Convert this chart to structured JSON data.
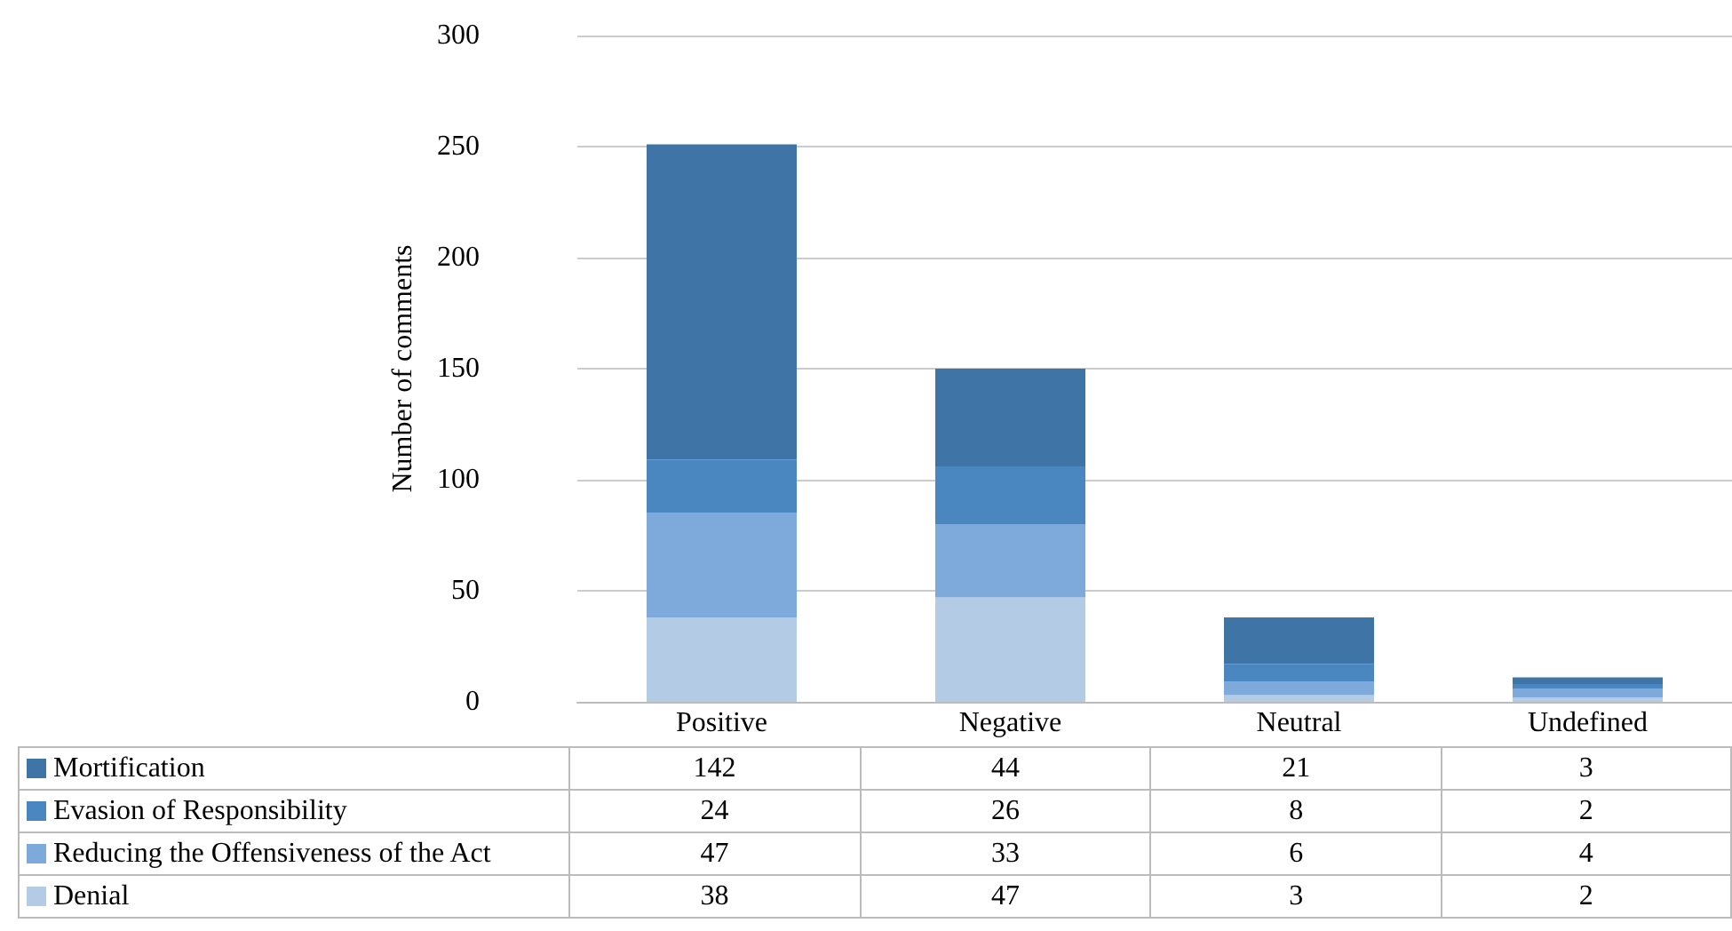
{
  "chart_data": {
    "type": "bar",
    "ylabel": "Number of comments",
    "categories": [
      "Positive",
      "Negative",
      "Neutral",
      "Undefined"
    ],
    "stacked": true,
    "ylim": [
      0,
      300
    ],
    "yticks": [
      0,
      50,
      100,
      150,
      200,
      250,
      300
    ],
    "grid": "y",
    "legend": "bottom",
    "data_labels": true,
    "series": [
      {
        "name": "Denial",
        "color": "#b4cbe6",
        "values": [
          38,
          47,
          3,
          2
        ]
      },
      {
        "name": "Reducing the Offensiveness of the Act",
        "color": "#7eaadb",
        "values": [
          47,
          33,
          6,
          4
        ]
      },
      {
        "name": "Evasion of Responsibility",
        "color": "#4a87c0",
        "values": [
          24,
          26,
          8,
          2
        ]
      },
      {
        "name": "Mortification",
        "color": "#3e75a6",
        "values": [
          142,
          44,
          21,
          3
        ]
      }
    ]
  }
}
